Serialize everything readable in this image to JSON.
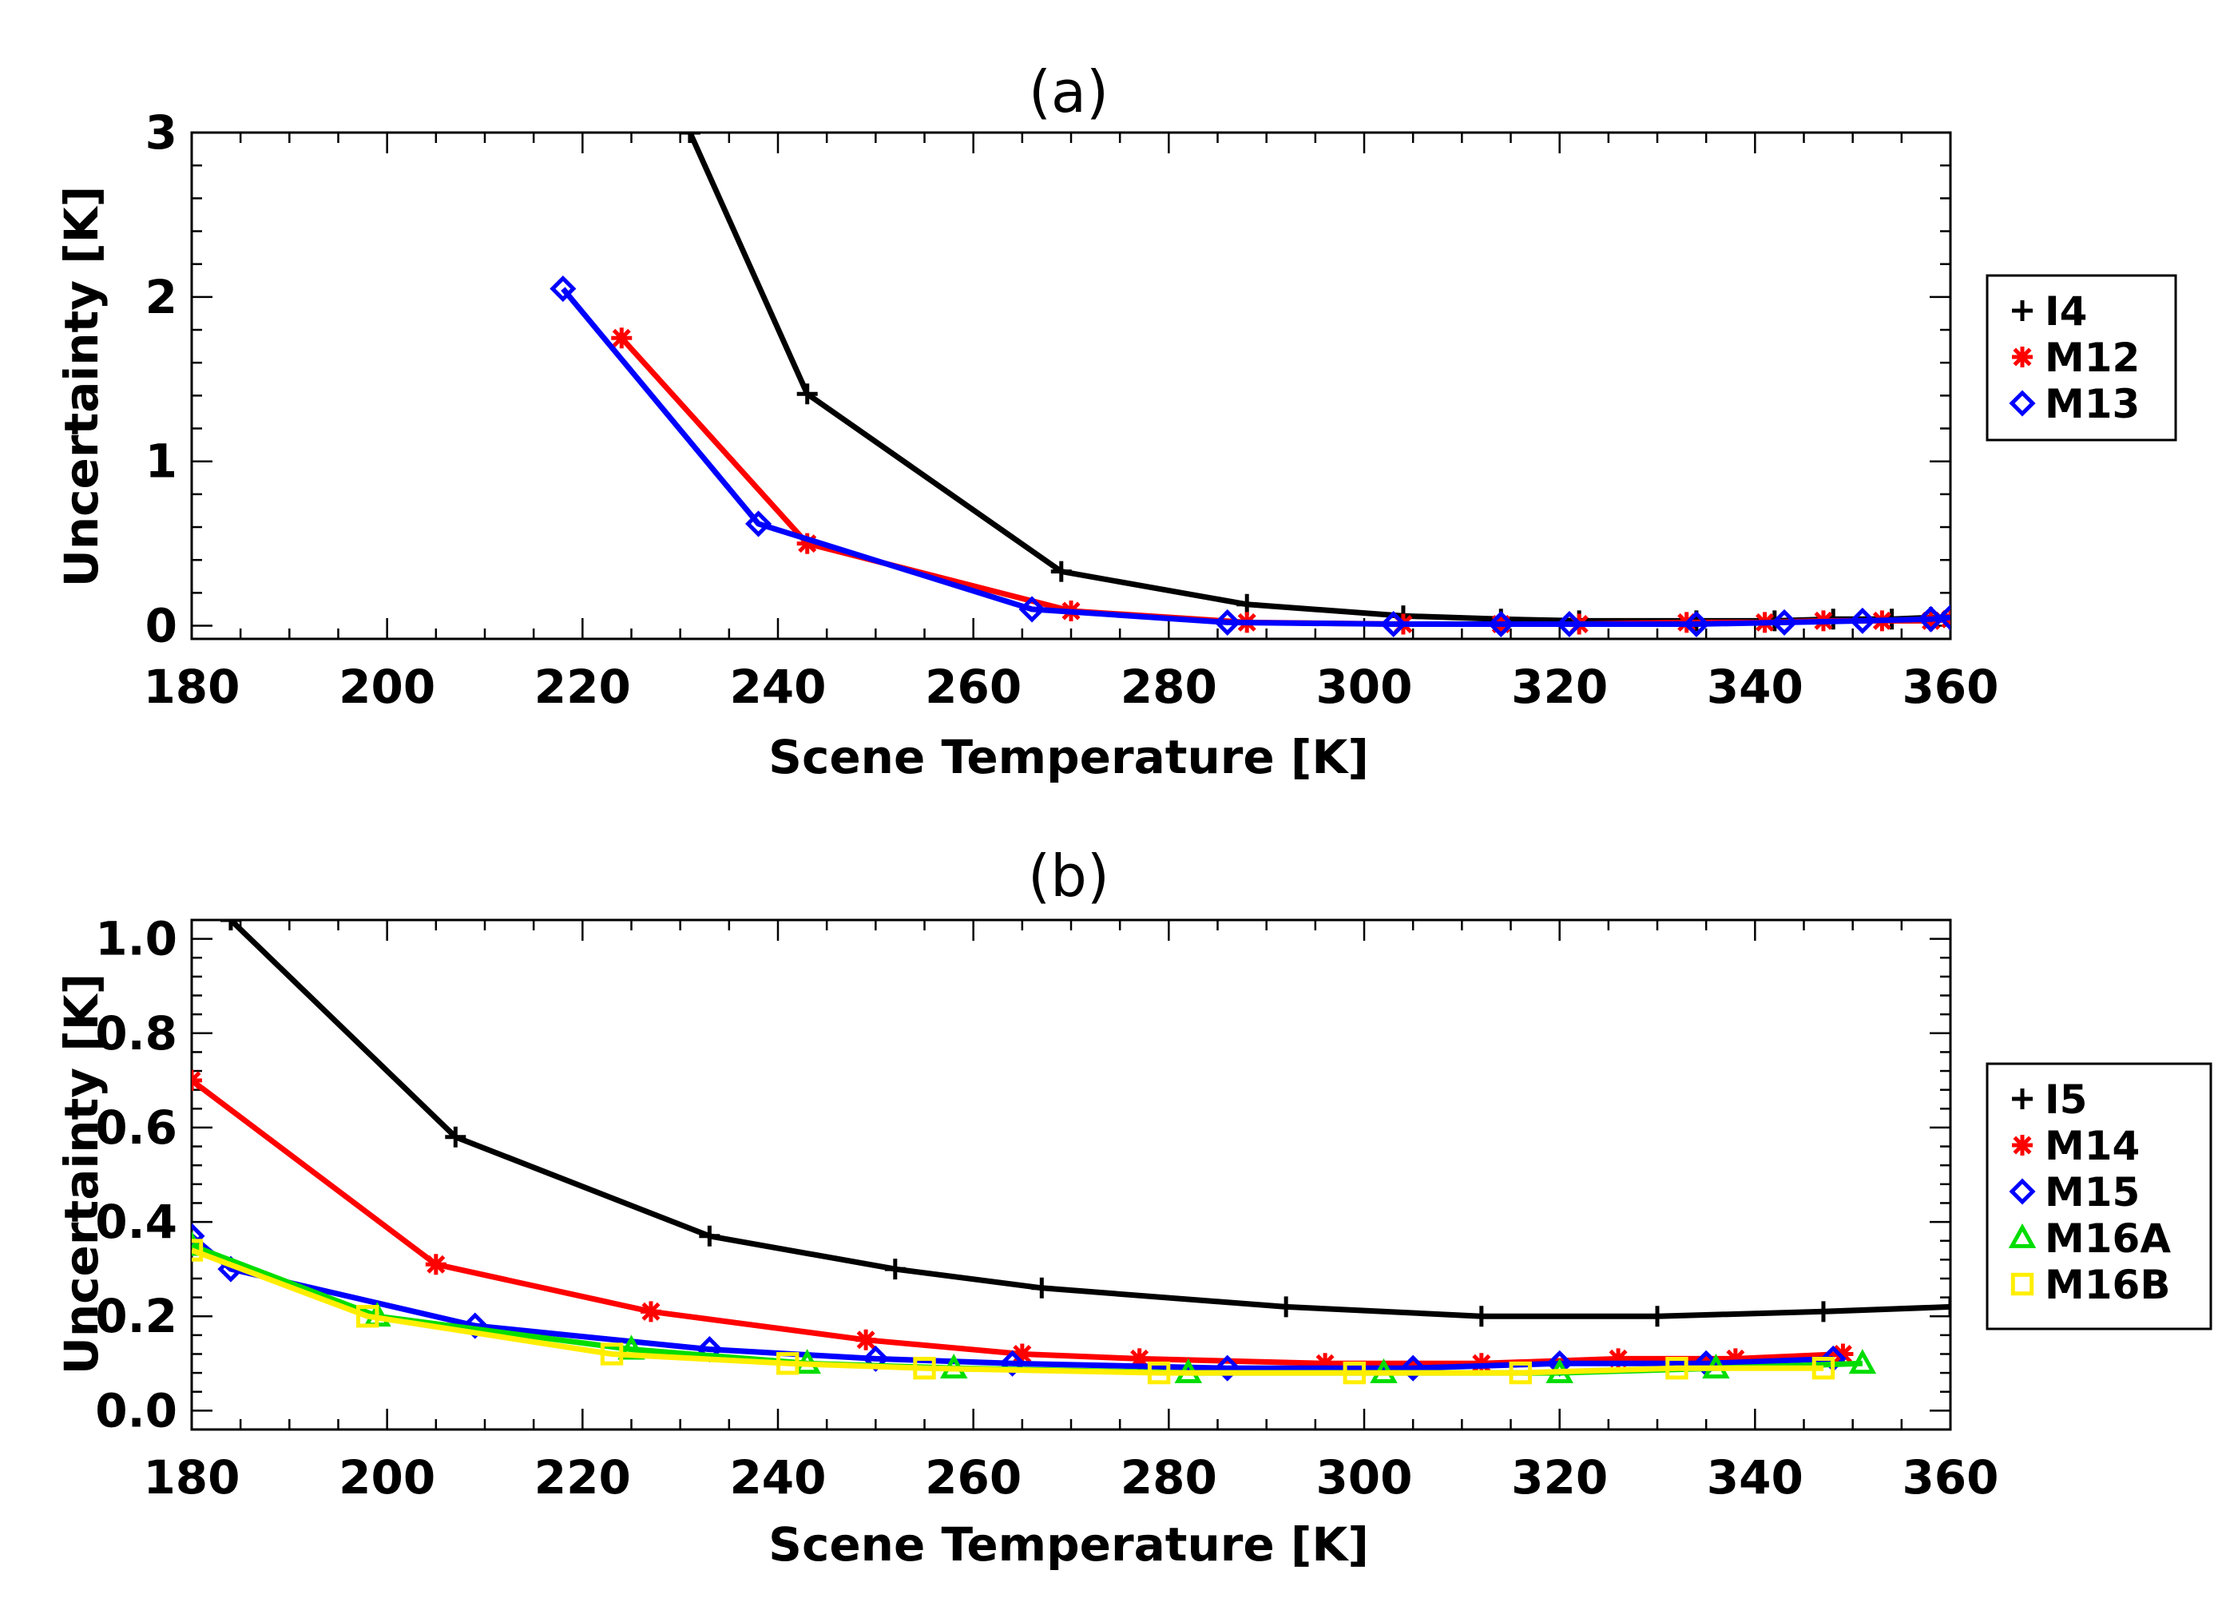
{
  "chart_data": [
    {
      "type": "line",
      "title": "(a)",
      "xlabel": "Scene Temperature [K]",
      "ylabel": "Uncertainty [K]",
      "xlim": [
        180,
        360
      ],
      "ylim": [
        -0.08,
        3
      ],
      "xticks": [
        180,
        200,
        220,
        240,
        260,
        280,
        300,
        320,
        340,
        360
      ],
      "xtick_labels": [
        "180",
        "200",
        "220",
        "240",
        "260",
        "280",
        "300",
        "320",
        "340",
        "360"
      ],
      "yticks": [
        0,
        1,
        2,
        3
      ],
      "ytick_labels": [
        "0",
        "1",
        "2",
        "3"
      ],
      "grid": false,
      "legend": "right",
      "series": [
        {
          "name": "I4",
          "color": "#000000",
          "marker": "plus",
          "points": [
            [
              231,
              3.0
            ],
            [
              243,
              1.41
            ],
            [
              269,
              0.33
            ],
            [
              288,
              0.13
            ],
            [
              304,
              0.06
            ],
            [
              314,
              0.04
            ],
            [
              322,
              0.03
            ],
            [
              334,
              0.03
            ],
            [
              342,
              0.03
            ],
            [
              348,
              0.04
            ],
            [
              354,
              0.04
            ],
            [
              358,
              0.05
            ],
            [
              360,
              0.05
            ]
          ]
        },
        {
          "name": "M12",
          "color": "#ff0000",
          "marker": "asterisk",
          "points": [
            [
              224,
              1.75
            ],
            [
              243,
              0.5
            ],
            [
              270,
              0.09
            ],
            [
              288,
              0.02
            ],
            [
              304,
              0.01
            ],
            [
              314,
              0.01
            ],
            [
              322,
              0.01
            ],
            [
              333,
              0.02
            ],
            [
              341,
              0.02
            ],
            [
              347,
              0.03
            ],
            [
              353,
              0.03
            ],
            [
              358,
              0.03
            ],
            [
              360,
              0.04
            ]
          ]
        },
        {
          "name": "M13",
          "color": "#0000ff",
          "marker": "diamond",
          "points": [
            [
              218,
              2.05
            ],
            [
              238,
              0.62
            ],
            [
              266,
              0.1
            ],
            [
              286,
              0.02
            ],
            [
              303,
              0.01
            ],
            [
              314,
              0.01
            ],
            [
              321,
              0.01
            ],
            [
              334,
              0.01
            ],
            [
              343,
              0.02
            ],
            [
              351,
              0.03
            ],
            [
              358,
              0.04
            ],
            [
              360,
              0.05
            ]
          ]
        }
      ]
    },
    {
      "type": "line",
      "title": "(b)",
      "xlabel": "Scene Temperature [K]",
      "ylabel": "Uncertainty [K]",
      "xlim": [
        180,
        360
      ],
      "ylim": [
        -0.04,
        1.04
      ],
      "xticks": [
        180,
        200,
        220,
        240,
        260,
        280,
        300,
        320,
        340,
        360
      ],
      "xtick_labels": [
        "180",
        "200",
        "220",
        "240",
        "260",
        "280",
        "300",
        "320",
        "340",
        "360"
      ],
      "yticks": [
        0,
        0.2,
        0.4,
        0.6,
        0.8,
        1.0
      ],
      "ytick_labels": [
        "0.0",
        "0.2",
        "0.4",
        "0.6",
        "0.8",
        "1.0"
      ],
      "grid": false,
      "legend": "right",
      "series": [
        {
          "name": "I5",
          "color": "#000000",
          "marker": "plus",
          "points": [
            [
              184,
              1.04
            ],
            [
              207,
              0.58
            ],
            [
              233,
              0.37
            ],
            [
              252,
              0.3
            ],
            [
              267,
              0.26
            ],
            [
              292,
              0.22
            ],
            [
              312,
              0.2
            ],
            [
              330,
              0.2
            ],
            [
              347,
              0.21
            ],
            [
              360,
              0.22
            ]
          ]
        },
        {
          "name": "M14",
          "color": "#ff0000",
          "marker": "asterisk",
          "points": [
            [
              180,
              0.7
            ],
            [
              205,
              0.31
            ],
            [
              227,
              0.21
            ],
            [
              249,
              0.15
            ],
            [
              265,
              0.12
            ],
            [
              277,
              0.11
            ],
            [
              296,
              0.1
            ],
            [
              312,
              0.1
            ],
            [
              326,
              0.11
            ],
            [
              338,
              0.11
            ],
            [
              349,
              0.12
            ]
          ]
        },
        {
          "name": "M15",
          "color": "#0000ff",
          "marker": "diamond",
          "points": [
            [
              180,
              0.37
            ],
            [
              184,
              0.3
            ],
            [
              209,
              0.18
            ],
            [
              233,
              0.13
            ],
            [
              250,
              0.11
            ],
            [
              264,
              0.1
            ],
            [
              286,
              0.09
            ],
            [
              305,
              0.09
            ],
            [
              320,
              0.1
            ],
            [
              335,
              0.1
            ],
            [
              348,
              0.11
            ]
          ]
        },
        {
          "name": "M16A",
          "color": "#00dd00",
          "marker": "triangle",
          "points": [
            [
              180,
              0.35
            ],
            [
              199,
              0.2
            ],
            [
              225,
              0.13
            ],
            [
              243,
              0.1
            ],
            [
              258,
              0.09
            ],
            [
              282,
              0.08
            ],
            [
              302,
              0.08
            ],
            [
              320,
              0.08
            ],
            [
              336,
              0.09
            ],
            [
              351,
              0.1
            ]
          ]
        },
        {
          "name": "M16B",
          "color": "#ffee00",
          "marker": "square",
          "points": [
            [
              180,
              0.34
            ],
            [
              198,
              0.2
            ],
            [
              223,
              0.12
            ],
            [
              241,
              0.1
            ],
            [
              255,
              0.09
            ],
            [
              279,
              0.08
            ],
            [
              299,
              0.08
            ],
            [
              316,
              0.08
            ],
            [
              332,
              0.09
            ],
            [
              347,
              0.09
            ]
          ]
        }
      ]
    }
  ]
}
